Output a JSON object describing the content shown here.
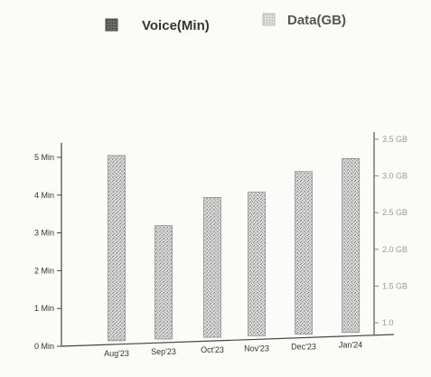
{
  "chart_data": {
    "type": "bar",
    "legend": {
      "position": "top",
      "entries": [
        {
          "label": "Voice(Min)",
          "color": "#5a5a5a"
        },
        {
          "label": "Data(GB)",
          "color": "#bdbdbd"
        }
      ]
    },
    "categories": [
      "Aug'23",
      "Sep'23",
      "Oct'23",
      "Nov'23",
      "Dec'23",
      "Jan'24"
    ],
    "series": [
      {
        "name": "Voice(Min)",
        "values": [
          4.9,
          3.0,
          3.7,
          3.8,
          4.3,
          4.6
        ]
      }
    ],
    "y_left": {
      "ticks": [
        "0 Min",
        "1 Min",
        "2 Min",
        "3 Min",
        "4 Min",
        "5 Min"
      ],
      "ylim": [
        0,
        5.5
      ]
    },
    "y_right": {
      "ticks": [
        "1.0",
        "1.5 GB",
        "2.0 GB",
        "2.5 GB",
        "3.0 GB",
        "3.5 GB"
      ],
      "color": "#9a9a9a"
    },
    "grid": false,
    "bar_color": "#c9c9c9",
    "bar_edge_color": "#8f8f8f"
  }
}
